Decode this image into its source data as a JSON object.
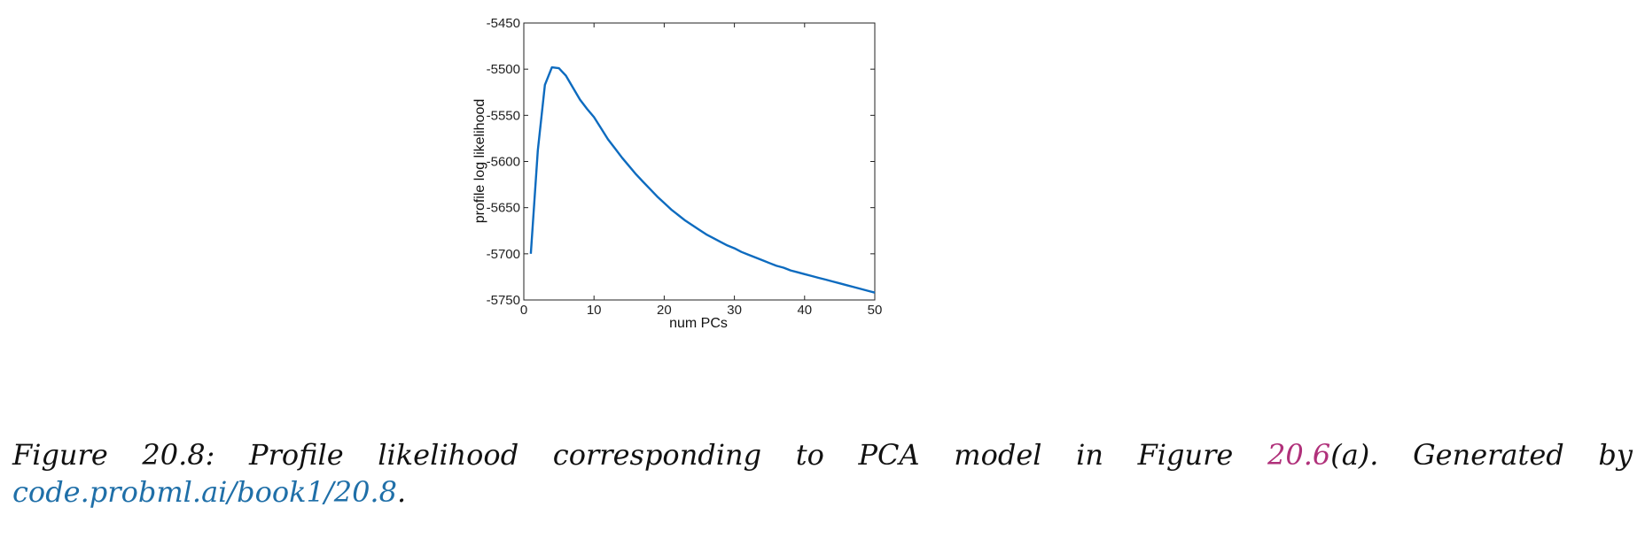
{
  "chart_data": {
    "type": "line",
    "xlabel": "num PCs",
    "ylabel": "profile log likelihood",
    "xlim": [
      0,
      50
    ],
    "ylim": [
      -5750,
      -5450
    ],
    "xticks": [
      0,
      10,
      20,
      30,
      40,
      50
    ],
    "yticks": [
      -5450,
      -5500,
      -5550,
      -5600,
      -5650,
      -5700,
      -5750
    ],
    "grid": false,
    "line_color": "#0d6bbf",
    "series": [
      {
        "x": [
          1,
          2,
          3,
          4,
          5,
          6,
          7,
          8,
          9,
          10,
          11,
          12,
          13,
          14,
          15,
          16,
          17,
          18,
          19,
          20,
          21,
          22,
          23,
          24,
          25,
          26,
          27,
          28,
          29,
          30,
          31,
          32,
          33,
          34,
          35,
          36,
          37,
          38,
          39,
          40,
          41,
          42,
          43,
          44,
          45,
          46,
          47,
          48,
          49,
          50
        ],
        "y": [
          -5700,
          -5588,
          -5517,
          -5498,
          -5499,
          -5507,
          -5520,
          -5533,
          -5543,
          -5552,
          -5564,
          -5576,
          -5586,
          -5596,
          -5605,
          -5614,
          -5622,
          -5630,
          -5638,
          -5645,
          -5652,
          -5658,
          -5664,
          -5669,
          -5674,
          -5679,
          -5683,
          -5687,
          -5691,
          -5694,
          -5698,
          -5701,
          -5704,
          -5707,
          -5710,
          -5713,
          -5715,
          -5718,
          -5720,
          -5722,
          -5724,
          -5726,
          -5728,
          -5730,
          -5732,
          -5734,
          -5736,
          -5738,
          -5740,
          -5742
        ]
      }
    ]
  },
  "caption": {
    "words_line1": [
      "Figure",
      "20.8:",
      "Profile",
      "likelihood",
      "corresponding",
      "to",
      "PCA",
      "model",
      "in",
      "Figure"
    ],
    "figure_ref": "20.6",
    "after_ref": "(a).",
    "generated": [
      "Generated",
      "by"
    ],
    "link_text": "code.probml.ai/book1/20.8",
    "link_trailing": "."
  }
}
